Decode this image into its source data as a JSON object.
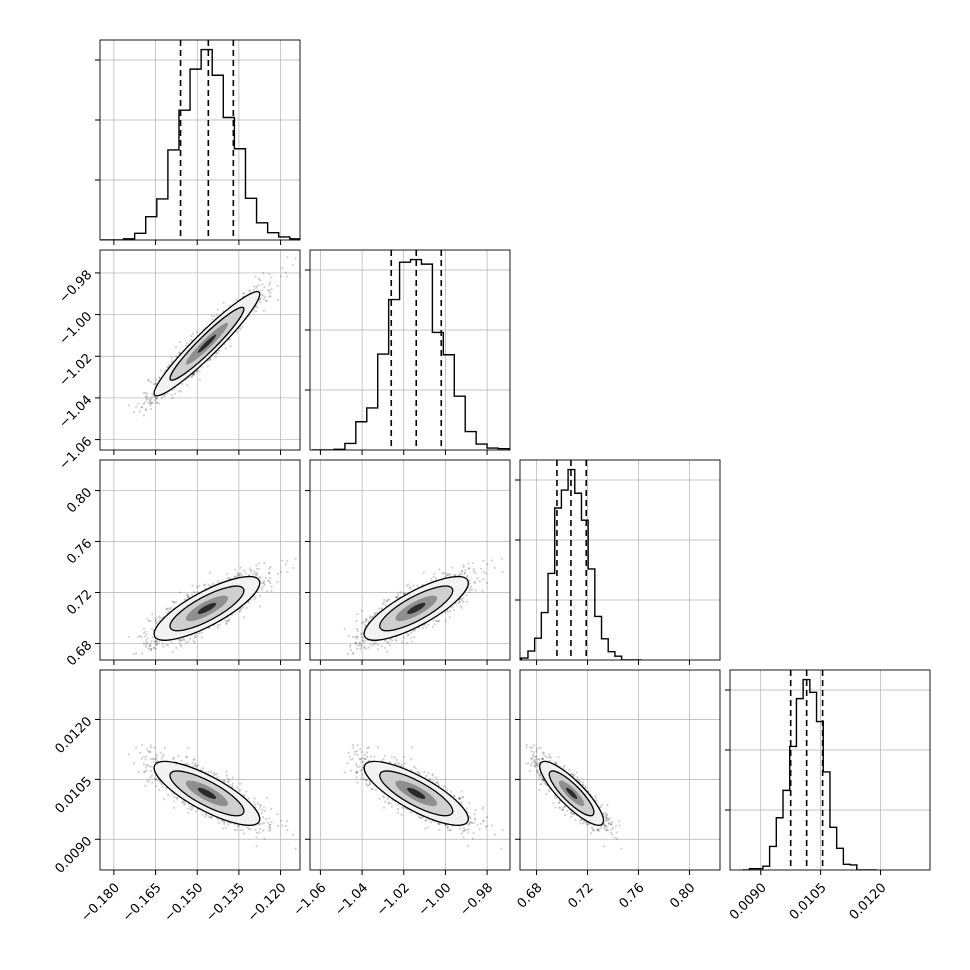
{
  "chart_data": {
    "type": "corner",
    "params": [
      {
        "range": [
          -0.185,
          -0.113
        ],
        "ticks": [
          -0.18,
          -0.165,
          -0.15,
          -0.135,
          -0.12
        ],
        "tick_labels": [
          "−0.180",
          "−0.165",
          "−0.150",
          "−0.135",
          "−0.120"
        ],
        "mean": -0.1465,
        "sd": 0.0095,
        "quantiles": [
          -0.156,
          -0.146,
          -0.137
        ]
      },
      {
        "range": [
          -1.065,
          -0.969
        ],
        "ticks": [
          -1.06,
          -1.04,
          -1.02,
          -1.0,
          -0.98
        ],
        "tick_labels": [
          "−1.06",
          "−1.04",
          "−1.02",
          "−1.00",
          "−0.98"
        ],
        "mean": -1.014,
        "sd": 0.0125,
        "quantiles": [
          -1.026,
          -1.014,
          -1.002
        ]
      },
      {
        "range": [
          0.667,
          0.824
        ],
        "ticks": [
          0.68,
          0.72,
          0.76,
          0.8
        ],
        "tick_labels": [
          "0.68",
          "0.72",
          "0.76",
          "0.80"
        ],
        "mean": 0.7075,
        "sd": 0.0125,
        "quantiles": [
          0.696,
          0.707,
          0.719
        ]
      },
      {
        "range": [
          0.00823,
          0.01324
        ],
        "ticks": [
          0.009,
          0.0105,
          0.012
        ],
        "tick_labels": [
          "0.0090",
          "0.0105",
          "0.0120"
        ],
        "mean": 0.01015,
        "sd": 0.0004,
        "quantiles": [
          0.00975,
          0.01015,
          0.01055
        ]
      }
    ],
    "correlations": [
      [
        1,
        0.95,
        0.8,
        -0.8
      ],
      [
        0.95,
        1,
        0.8,
        -0.8
      ],
      [
        0.8,
        0.8,
        1,
        -0.85
      ],
      [
        -0.8,
        -0.8,
        -0.85,
        1
      ]
    ],
    "histogram_bins": 20,
    "grid": true,
    "colors": {
      "line": "#000000",
      "points": "#000000",
      "grid": "#b0b0b0",
      "frame": "#000000"
    }
  }
}
